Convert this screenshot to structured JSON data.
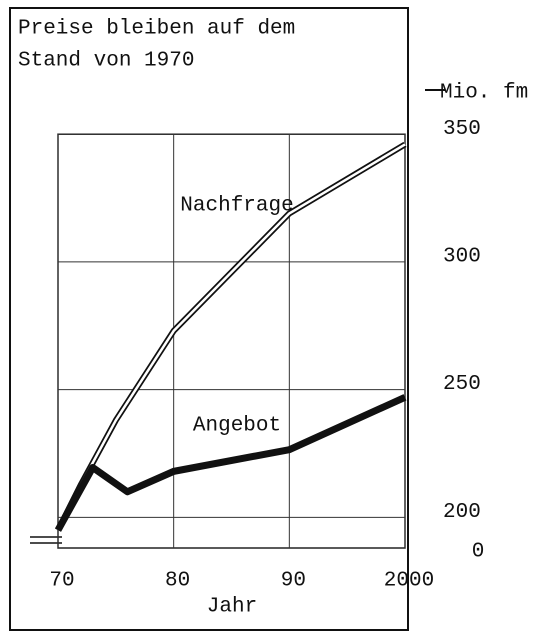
{
  "chart_data": {
    "type": "line",
    "title": [
      "Preise bleiben auf dem",
      "Stand von 1970"
    ],
    "y_unit_label": "Mio. fm",
    "x_label": "Jahr",
    "axis_break_label": "0",
    "series": [
      {
        "name": "Nachfrage",
        "color": "#111111",
        "line_style": "double",
        "x": [
          1970,
          1972,
          1975,
          1980,
          1990,
          2000
        ],
        "values": [
          195,
          213,
          238,
          273,
          319,
          346
        ]
      },
      {
        "name": "Angebot",
        "color": "#111111",
        "line_style": "solid",
        "x": [
          1970,
          1973,
          1976,
          1980,
          1990,
          2000
        ],
        "values": [
          195,
          219.5,
          210,
          218,
          226.5,
          247
        ]
      }
    ],
    "xlim": [
      1970,
      2000
    ],
    "xticks": [
      {
        "value": 1970,
        "label": "70"
      },
      {
        "value": 1980,
        "label": "80"
      },
      {
        "value": 1990,
        "label": "90"
      },
      2000
    ],
    "ylim": [
      188,
      354
    ],
    "yticks": [
      200,
      250,
      300,
      350
    ],
    "grid": true
  }
}
